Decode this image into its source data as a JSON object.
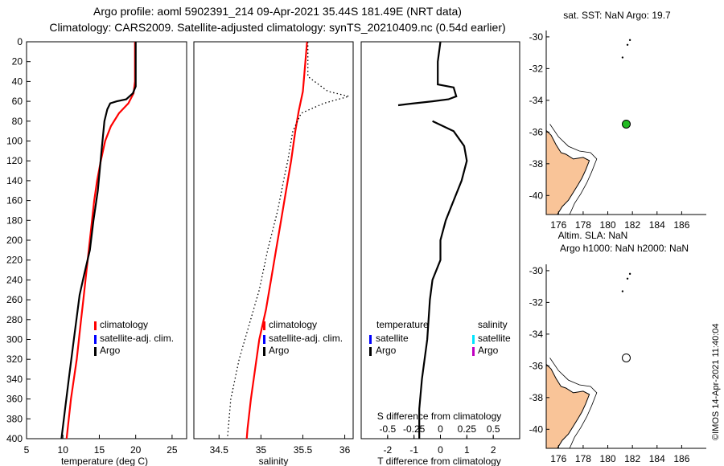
{
  "header": {
    "line1": "Argo profile: aoml 5902391_214 09-Apr-2021 35.44S 181.49E (NRT data)",
    "line2": "Climatology: CARS2009. Satellite-adjusted climatology: synTS_20210409.nc (0.54d earlier)"
  },
  "credit": "©IMOS 14-Apr-2021 11:40:04",
  "chart_data": [
    {
      "id": "temperature",
      "type": "line",
      "xlabel": "temperature (deg C)",
      "ylabel": "",
      "xlim": [
        5,
        27
      ],
      "ylim": [
        400,
        0
      ],
      "xticks": [
        5,
        10,
        15,
        20,
        25
      ],
      "yticks": [
        0,
        20,
        40,
        60,
        80,
        100,
        120,
        140,
        160,
        180,
        200,
        220,
        240,
        260,
        280,
        300,
        320,
        340,
        360,
        380,
        400
      ],
      "legend": [
        "climatology",
        "satellite-adj. clim.",
        "Argo"
      ],
      "series": [
        {
          "name": "climatology",
          "color": "#ff0000",
          "points": [
            [
              19.9,
              0
            ],
            [
              19.9,
              40
            ],
            [
              19.7,
              52
            ],
            [
              19.0,
              62
            ],
            [
              17.7,
              72
            ],
            [
              16.6,
              85
            ],
            [
              15.8,
              100
            ],
            [
              15.2,
              120
            ],
            [
              14.7,
              140
            ],
            [
              14.3,
              160
            ],
            [
              14.0,
              180
            ],
            [
              13.7,
              200
            ],
            [
              13.4,
              220
            ],
            [
              13.1,
              240
            ],
            [
              12.8,
              260
            ],
            [
              12.5,
              280
            ],
            [
              12.2,
              300
            ],
            [
              11.9,
              320
            ],
            [
              11.5,
              340
            ],
            [
              11.1,
              360
            ],
            [
              10.8,
              380
            ],
            [
              10.5,
              400
            ]
          ]
        },
        {
          "name": "Argo",
          "color": "#000000",
          "points": [
            [
              20.0,
              0
            ],
            [
              20.0,
              45
            ],
            [
              19.6,
              52
            ],
            [
              18.7,
              58
            ],
            [
              17.4,
              60
            ],
            [
              16.5,
              62
            ],
            [
              16.1,
              68
            ],
            [
              15.7,
              80
            ],
            [
              15.3,
              110
            ],
            [
              14.8,
              150
            ],
            [
              14.2,
              180
            ],
            [
              13.7,
              210
            ],
            [
              12.9,
              235
            ],
            [
              12.3,
              255
            ],
            [
              11.5,
              300
            ],
            [
              10.8,
              340
            ],
            [
              10.3,
              370
            ],
            [
              9.8,
              400
            ]
          ]
        }
      ]
    },
    {
      "id": "salinity",
      "type": "line",
      "xlabel": "salinity",
      "xlim": [
        34.2,
        36.1
      ],
      "ylim": [
        400,
        0
      ],
      "xticks": [
        34.5,
        35,
        35.5,
        36
      ],
      "xtick_labels": [
        "34.5",
        "35",
        "35.5",
        "36"
      ],
      "legend": [
        "climatology",
        "satellite-adj. clim.",
        "Argo"
      ],
      "series": [
        {
          "name": "climatology",
          "color": "#ff0000",
          "points": [
            [
              35.55,
              0
            ],
            [
              35.52,
              30
            ],
            [
              35.5,
              50
            ],
            [
              35.45,
              70
            ],
            [
              35.41,
              90
            ],
            [
              35.36,
              120
            ],
            [
              35.3,
              150
            ],
            [
              35.24,
              180
            ],
            [
              35.18,
              210
            ],
            [
              35.12,
              240
            ],
            [
              35.06,
              270
            ],
            [
              34.98,
              300
            ],
            [
              34.93,
              330
            ],
            [
              34.88,
              360
            ],
            [
              34.84,
              390
            ],
            [
              34.83,
              400
            ]
          ]
        },
        {
          "name": "satellite-adj. clim.",
          "color": "#000000",
          "dashed": true,
          "points": [
            [
              35.56,
              0
            ],
            [
              35.56,
              35
            ],
            [
              35.8,
              50
            ],
            [
              36.05,
              55
            ],
            [
              35.75,
              62
            ],
            [
              35.48,
              72
            ],
            [
              35.38,
              90
            ],
            [
              35.32,
              120
            ],
            [
              35.27,
              140
            ],
            [
              35.2,
              170
            ],
            [
              35.08,
              210
            ],
            [
              34.98,
              250
            ],
            [
              34.86,
              285
            ],
            [
              34.74,
              320
            ],
            [
              34.64,
              360
            ],
            [
              34.6,
              400
            ]
          ]
        }
      ]
    },
    {
      "id": "difference",
      "type": "line",
      "xlabel": "T difference from climatology",
      "inner_label": "S difference from climatology",
      "xlim": [
        -3,
        3
      ],
      "ylim": [
        400,
        0
      ],
      "xticks": [
        -2,
        -1,
        0,
        1,
        2
      ],
      "secondary_ticks": [
        "-0.5",
        "-0.25",
        "0",
        "0.25",
        "0.5"
      ],
      "legend_temperature": {
        "title": "temperature",
        "items": [
          "satellite",
          "Argo"
        ]
      },
      "legend_salinity": {
        "title": "salinity",
        "items": [
          "satellite",
          "Argo"
        ]
      },
      "series": [
        {
          "name": "Argo T difference",
          "color": "#000000",
          "points": [
            [
              0.0,
              0
            ],
            [
              -0.1,
              20
            ],
            [
              -0.1,
              43
            ],
            [
              0.5,
              46
            ],
            [
              0.6,
              55
            ],
            [
              0.3,
              58
            ],
            [
              -0.3,
              60
            ],
            [
              -1.0,
              62
            ],
            [
              -1.6,
              64
            ]
          ]
        },
        {
          "name": "Argo T difference (deep)",
          "color": "#000000",
          "points": [
            [
              -0.3,
              80
            ],
            [
              0.5,
              90
            ],
            [
              0.9,
              105
            ],
            [
              1.0,
              120
            ],
            [
              0.8,
              140
            ],
            [
              0.5,
              160
            ],
            [
              0.2,
              180
            ],
            [
              0.0,
              200
            ],
            [
              0.0,
              220
            ],
            [
              -0.3,
              240
            ],
            [
              -0.4,
              260
            ],
            [
              -0.5,
              300
            ],
            [
              -0.7,
              340
            ],
            [
              -0.8,
              370
            ],
            [
              -0.8,
              400
            ]
          ]
        }
      ]
    },
    {
      "id": "map-sst",
      "type": "scatter",
      "title": "sat. SST: NaN Argo: 19.7",
      "xlim": [
        175,
        188
      ],
      "ylim": [
        -41.2,
        -29.6
      ],
      "xticks": [
        176,
        178,
        180,
        182,
        184,
        186
      ],
      "yticks": [
        -30,
        -32,
        -34,
        -36,
        -38,
        -40
      ],
      "argo_position": [
        181.5,
        -35.5
      ],
      "marker": "filled-green"
    },
    {
      "id": "map-sla",
      "type": "scatter",
      "title": "Altim. SLA: NaN",
      "subtitle": "Argo h1000: NaN h2000: NaN",
      "xlim": [
        175,
        188
      ],
      "ylim": [
        -41.2,
        -29.6
      ],
      "xticks": [
        176,
        178,
        180,
        182,
        184,
        186
      ],
      "yticks": [
        -30,
        -32,
        -34,
        -36,
        -38,
        -40
      ],
      "argo_position": [
        181.5,
        -35.5
      ],
      "marker": "open"
    }
  ],
  "colors": {
    "climatology": "#ff0000",
    "satellite_adj": "#0000ff",
    "argo": "#000000",
    "sal_satellite": "#00e5ff",
    "sal_argo": "#c000c0",
    "land": "#f9c498",
    "argo_marker": "#22bb22"
  }
}
